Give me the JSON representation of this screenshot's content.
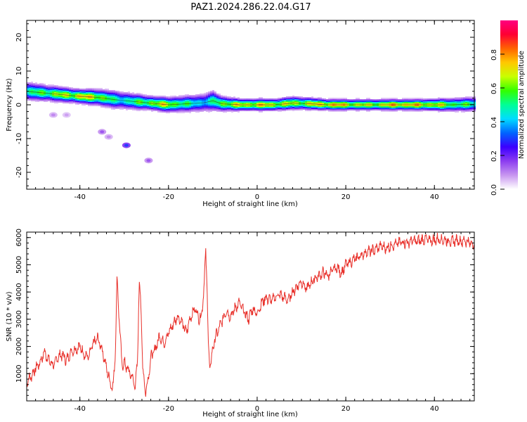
{
  "title": "PAZ1.2024.286.22.04.G17",
  "chart_data": [
    {
      "type": "heatmap",
      "xlabel": "Height of straight line (km)",
      "ylabel": "Frequency (Hz)",
      "xlim": [
        -52,
        49
      ],
      "ylim": [
        -25,
        25
      ],
      "xticks": [
        -40,
        -20,
        0,
        20,
        40
      ],
      "yticks": [
        -20,
        -10,
        0,
        10,
        20
      ],
      "grid": false,
      "colorbar": {
        "label": "Normalized spectral amplitude",
        "range": [
          0,
          1
        ],
        "ticks": [
          0.0,
          0.2,
          0.4,
          0.6,
          0.8
        ],
        "tick_labels": [
          "0.0",
          "0.2",
          "0.4",
          "0.6",
          "0.8"
        ],
        "colormap": [
          "#ffffff",
          "#c896f0",
          "#8c3cf0",
          "#3c00ff",
          "#0064ff",
          "#00dcff",
          "#00ff96",
          "#32ff00",
          "#c8ff00",
          "#ffc800",
          "#ff6400",
          "#ff0033",
          "#ff0080"
        ]
      },
      "ridge": {
        "x": [
          -52,
          -48,
          -44,
          -40,
          -36,
          -32,
          -28,
          -24,
          -20,
          -16,
          -12,
          -10,
          -8,
          -4,
          0,
          4,
          8,
          12,
          16,
          20,
          24,
          28,
          32,
          36,
          40,
          44,
          49
        ],
        "y": [
          4,
          3.5,
          3,
          2.5,
          2.2,
          1.5,
          1.0,
          0.5,
          0.0,
          0.3,
          0.6,
          1.2,
          0.3,
          0.0,
          0.0,
          0.0,
          0.5,
          0.3,
          0.0,
          0.0,
          0.0,
          0.0,
          0.0,
          0.0,
          0.0,
          0.0,
          0.2
        ],
        "amplitude": [
          0.55,
          0.7,
          0.75,
          0.85,
          0.8,
          0.55,
          0.6,
          0.75,
          0.8,
          0.6,
          0.5,
          0.55,
          0.75,
          0.8,
          0.85,
          0.8,
          0.75,
          0.8,
          0.9,
          0.85,
          0.75,
          0.8,
          0.9,
          0.85,
          0.8,
          0.7,
          0.6
        ],
        "width_hz": [
          1.8,
          1.6,
          1.5,
          1.4,
          1.6,
          1.8,
          1.6,
          1.4,
          1.5,
          1.6,
          1.8,
          2.0,
          1.5,
          1.2,
          1.2,
          1.2,
          1.3,
          1.2,
          1.1,
          1.1,
          1.1,
          1.1,
          1.1,
          1.1,
          1.2,
          1.3,
          1.4
        ]
      },
      "blobs": [
        {
          "x": -35,
          "y": -8,
          "amplitude": 0.15
        },
        {
          "x": -33.5,
          "y": -9.5,
          "amplitude": 0.1
        },
        {
          "x": -29.5,
          "y": -12,
          "amplitude": 0.3
        },
        {
          "x": -24.5,
          "y": -16.5,
          "amplitude": 0.15
        },
        {
          "x": -46,
          "y": -3,
          "amplitude": 0.1
        },
        {
          "x": -43,
          "y": -3,
          "amplitude": 0.08
        }
      ]
    },
    {
      "type": "line",
      "xlabel": "Height of straight line (km)",
      "ylabel": "SNR (10 * v/v)",
      "xlim": [
        -52,
        49
      ],
      "ylim": [
        0,
        6200
      ],
      "xticks": [
        -40,
        -20,
        0,
        20,
        40
      ],
      "yticks": [
        1000,
        2000,
        3000,
        4000,
        5000,
        6000
      ],
      "grid": false,
      "series": [
        {
          "color": "#e8302a",
          "x": [
            -52,
            -51,
            -50,
            -49,
            -48,
            -47,
            -46,
            -45,
            -44,
            -43,
            -42,
            -41,
            -40,
            -39,
            -38,
            -37,
            -36,
            -35,
            -34,
            -33,
            -32.5,
            -32,
            -31.6,
            -31.2,
            -30.5,
            -30,
            -29,
            -28,
            -27.5,
            -27,
            -26.6,
            -26.3,
            -25.8,
            -25.2,
            -24.5,
            -24,
            -23,
            -22,
            -21,
            -20,
            -19,
            -18,
            -17,
            -16,
            -15,
            -14,
            -13,
            -12.5,
            -12,
            -11.6,
            -11.3,
            -11,
            -10.7,
            -10.4,
            -10,
            -9.5,
            -9,
            -8,
            -7,
            -6,
            -5,
            -4,
            -3,
            -2,
            -1,
            0,
            1,
            2,
            3,
            4,
            5,
            6,
            7,
            8,
            9,
            10,
            11,
            12,
            13,
            14,
            15,
            16,
            17,
            18,
            19,
            20,
            21,
            22,
            23,
            24,
            25,
            26,
            27,
            28,
            29,
            30,
            31,
            32,
            33,
            34,
            35,
            36,
            37,
            38,
            39,
            40,
            41,
            42,
            43,
            44,
            45,
            46,
            47,
            48,
            49
          ],
          "y": [
            700,
            900,
            1200,
            1400,
            1800,
            1500,
            1300,
            1600,
            1700,
            1500,
            1800,
            1900,
            2000,
            1700,
            1600,
            2100,
            2300,
            1900,
            1200,
            600,
            500,
            1800,
            4600,
            3200,
            1300,
            1400,
            1100,
            800,
            500,
            1500,
            4400,
            3800,
            1200,
            300,
            900,
            1600,
            1900,
            2400,
            2100,
            2500,
            2800,
            3100,
            2900,
            2500,
            3100,
            3400,
            3000,
            3200,
            4200,
            5500,
            4200,
            2000,
            1200,
            1500,
            1900,
            2300,
            2500,
            2900,
            3300,
            3100,
            3400,
            3600,
            3300,
            3000,
            3400,
            3200,
            3600,
            3800,
            3700,
            3800,
            3900,
            3800,
            3700,
            4000,
            4200,
            4400,
            4100,
            4300,
            4500,
            4600,
            4700,
            4600,
            4800,
            4900,
            4700,
            5000,
            5100,
            5200,
            5300,
            5400,
            5500,
            5500,
            5600,
            5700,
            5600,
            5700,
            5750,
            5800,
            5850,
            5800,
            5900,
            5850,
            5900,
            5950,
            5900,
            5900,
            5950,
            5900,
            5900,
            5850,
            5900,
            5850,
            5900,
            5800,
            5750
          ]
        }
      ]
    }
  ]
}
